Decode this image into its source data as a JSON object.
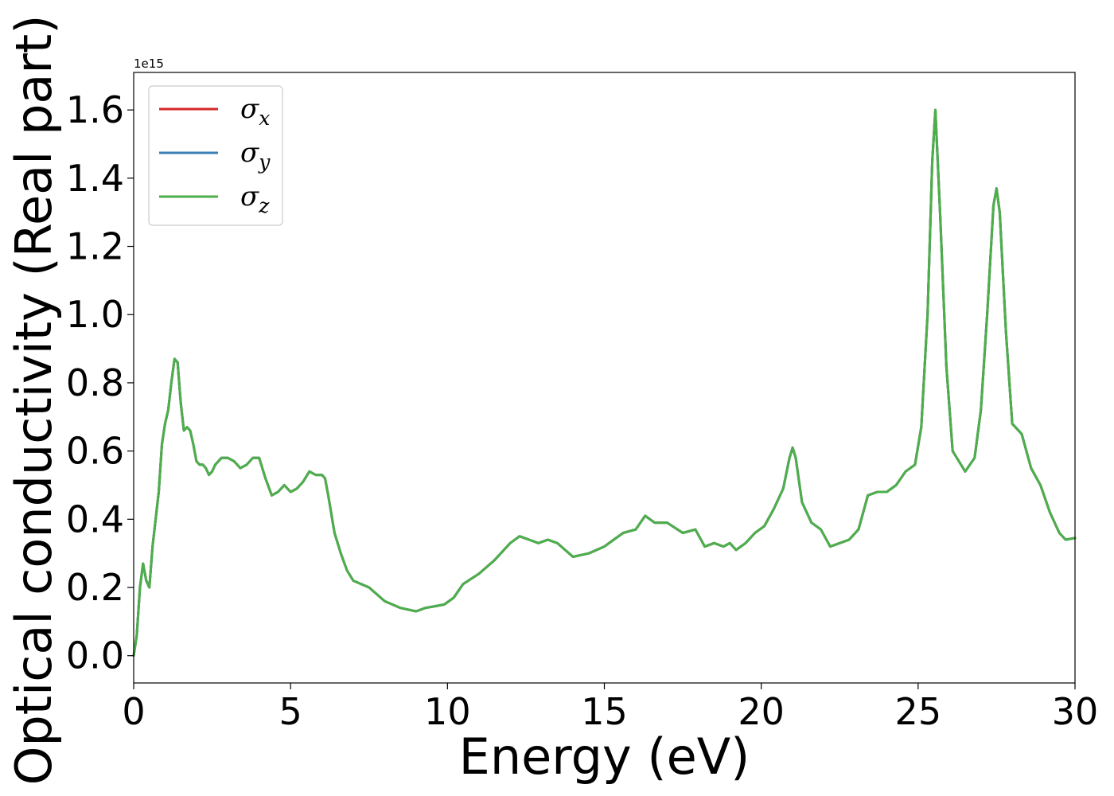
{
  "chart_data": {
    "type": "line",
    "xlabel": "Energy (eV)",
    "ylabel": "Optical conductivity (Real part)",
    "y_offset_label": "1e15",
    "xlim": [
      0,
      30
    ],
    "ylim": [
      -0.08,
      1.71
    ],
    "xticks": [
      "0",
      "5",
      "10",
      "15",
      "20",
      "25",
      "30"
    ],
    "xtick_values": [
      0,
      5,
      10,
      15,
      20,
      25,
      30
    ],
    "yticks": [
      "0.0",
      "0.2",
      "0.4",
      "0.6",
      "0.8",
      "1.0",
      "1.2",
      "1.4",
      "1.6"
    ],
    "ytick_values": [
      0.0,
      0.2,
      0.4,
      0.6,
      0.8,
      1.0,
      1.2,
      1.4,
      1.6
    ],
    "grid": false,
    "legend_position": "top-left",
    "series": [
      {
        "name": "σ",
        "subscript": "x",
        "color": "#d62728"
      },
      {
        "name": "σ",
        "subscript": "y",
        "color": "#3b7fb7"
      },
      {
        "name": "σ",
        "subscript": "z",
        "color": "#4daf4a"
      }
    ],
    "x": [
      0,
      0.1,
      0.2,
      0.3,
      0.4,
      0.5,
      0.6,
      0.7,
      0.8,
      0.9,
      1.0,
      1.1,
      1.2,
      1.3,
      1.4,
      1.5,
      1.6,
      1.7,
      1.8,
      1.9,
      2.0,
      2.1,
      2.2,
      2.3,
      2.4,
      2.5,
      2.6,
      2.8,
      3.0,
      3.2,
      3.4,
      3.6,
      3.8,
      4.0,
      4.2,
      4.4,
      4.6,
      4.8,
      5.0,
      5.2,
      5.4,
      5.6,
      5.8,
      6.0,
      6.1,
      6.2,
      6.4,
      6.6,
      6.8,
      7.0,
      7.5,
      8.0,
      8.5,
      9.0,
      9.3,
      9.6,
      9.9,
      10.2,
      10.5,
      11.0,
      11.5,
      12.0,
      12.3,
      12.6,
      12.9,
      13.2,
      13.5,
      14.0,
      14.5,
      15.0,
      15.3,
      15.6,
      16.0,
      16.3,
      16.6,
      17.0,
      17.5,
      17.9,
      18.2,
      18.5,
      18.8,
      19.0,
      19.2,
      19.5,
      19.8,
      20.1,
      20.4,
      20.7,
      20.9,
      21.0,
      21.1,
      21.3,
      21.6,
      21.9,
      22.2,
      22.5,
      22.8,
      23.1,
      23.4,
      23.7,
      24.0,
      24.3,
      24.6,
      24.9,
      25.1,
      25.3,
      25.45,
      25.55,
      25.7,
      25.9,
      26.1,
      26.3,
      26.5,
      26.8,
      27.0,
      27.2,
      27.4,
      27.5,
      27.6,
      27.8,
      28.0,
      28.3,
      28.6,
      28.9,
      29.2,
      29.5,
      29.7,
      30.0
    ],
    "values": [
      0.0,
      0.06,
      0.2,
      0.27,
      0.22,
      0.2,
      0.32,
      0.4,
      0.48,
      0.62,
      0.68,
      0.72,
      0.8,
      0.87,
      0.86,
      0.74,
      0.66,
      0.67,
      0.66,
      0.62,
      0.57,
      0.56,
      0.56,
      0.55,
      0.53,
      0.54,
      0.56,
      0.58,
      0.58,
      0.57,
      0.55,
      0.56,
      0.58,
      0.58,
      0.52,
      0.47,
      0.48,
      0.5,
      0.48,
      0.49,
      0.51,
      0.54,
      0.53,
      0.53,
      0.52,
      0.47,
      0.36,
      0.3,
      0.25,
      0.22,
      0.2,
      0.16,
      0.14,
      0.13,
      0.14,
      0.145,
      0.15,
      0.17,
      0.21,
      0.24,
      0.28,
      0.33,
      0.35,
      0.34,
      0.33,
      0.34,
      0.33,
      0.29,
      0.3,
      0.32,
      0.34,
      0.36,
      0.37,
      0.41,
      0.39,
      0.39,
      0.36,
      0.37,
      0.32,
      0.33,
      0.32,
      0.33,
      0.31,
      0.33,
      0.36,
      0.38,
      0.43,
      0.49,
      0.58,
      0.61,
      0.58,
      0.45,
      0.39,
      0.37,
      0.32,
      0.33,
      0.34,
      0.37,
      0.47,
      0.48,
      0.48,
      0.5,
      0.54,
      0.56,
      0.67,
      1.0,
      1.45,
      1.6,
      1.3,
      0.85,
      0.6,
      0.57,
      0.54,
      0.58,
      0.72,
      1.0,
      1.32,
      1.37,
      1.3,
      0.95,
      0.68,
      0.65,
      0.55,
      0.5,
      0.42,
      0.36,
      0.34,
      0.345
    ]
  }
}
